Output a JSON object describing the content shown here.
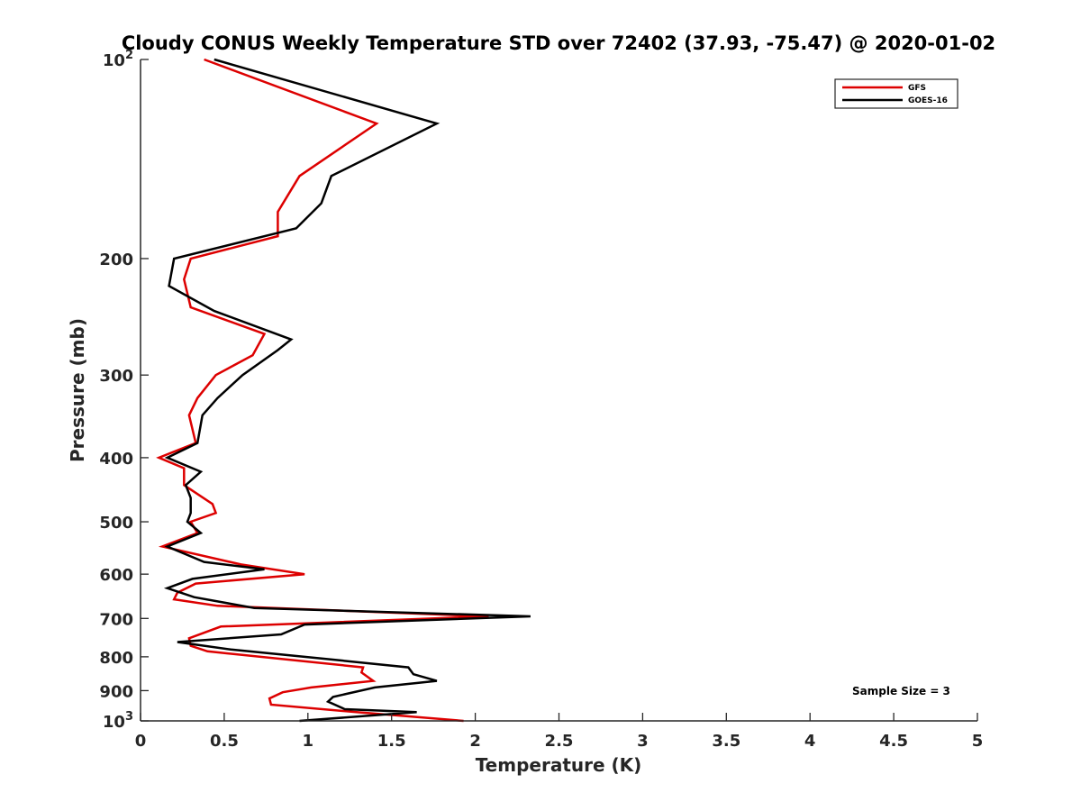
{
  "chart_data": {
    "type": "line",
    "title": "Cloudy CONUS Weekly Temperature STD over 72402 (37.93, -75.47) @ 2020-01-02",
    "xlabel": "Temperature (K)",
    "ylabel": "Pressure (mb)",
    "xlim": [
      0,
      5
    ],
    "ylim": [
      100,
      1000
    ],
    "y_scale": "log",
    "y_reversed": true,
    "xticks": [
      0,
      0.5,
      1,
      1.5,
      2,
      2.5,
      3,
      3.5,
      4,
      4.5,
      5
    ],
    "xtick_labels": [
      "0",
      "0.5",
      "1",
      "1.5",
      "2",
      "2.5",
      "3",
      "3.5",
      "4",
      "4.5",
      "5"
    ],
    "yticks": [
      100,
      200,
      300,
      400,
      500,
      600,
      700,
      800,
      900,
      1000
    ],
    "ytick_labels": [
      {
        "base": "10",
        "exp": "2"
      },
      {
        "base": "200",
        "exp": ""
      },
      {
        "base": "300",
        "exp": ""
      },
      {
        "base": "400",
        "exp": ""
      },
      {
        "base": "500",
        "exp": ""
      },
      {
        "base": "600",
        "exp": ""
      },
      {
        "base": "700",
        "exp": ""
      },
      {
        "base": "800",
        "exp": ""
      },
      {
        "base": "900",
        "exp": ""
      },
      {
        "base": "10",
        "exp": "3"
      }
    ],
    "grid": false,
    "legend_position": "top-right",
    "series": [
      {
        "name": "GFS",
        "color": "#dd0000",
        "points": [
          [
            0.38,
            100
          ],
          [
            1.41,
            125
          ],
          [
            0.95,
            150
          ],
          [
            0.82,
            170
          ],
          [
            0.82,
            185
          ],
          [
            0.3,
            200
          ],
          [
            0.26,
            215
          ],
          [
            0.3,
            237
          ],
          [
            0.74,
            260
          ],
          [
            0.67,
            280
          ],
          [
            0.45,
            300
          ],
          [
            0.34,
            325
          ],
          [
            0.29,
            345
          ],
          [
            0.33,
            380
          ],
          [
            0.11,
            400
          ],
          [
            0.26,
            415
          ],
          [
            0.26,
            440
          ],
          [
            0.43,
            470
          ],
          [
            0.45,
            485
          ],
          [
            0.3,
            500
          ],
          [
            0.34,
            520
          ],
          [
            0.13,
            545
          ],
          [
            0.6,
            580
          ],
          [
            0.98,
            600
          ],
          [
            0.33,
            620
          ],
          [
            0.22,
            640
          ],
          [
            0.2,
            655
          ],
          [
            0.46,
            670
          ],
          [
            2.08,
            695
          ],
          [
            0.48,
            720
          ],
          [
            0.29,
            750
          ],
          [
            0.3,
            770
          ],
          [
            0.4,
            785
          ],
          [
            1.33,
            830
          ],
          [
            1.32,
            845
          ],
          [
            1.39,
            870
          ],
          [
            1.02,
            890
          ],
          [
            0.85,
            905
          ],
          [
            0.77,
            925
          ],
          [
            0.78,
            945
          ],
          [
            1.29,
            970
          ],
          [
            1.93,
            1000
          ]
        ]
      },
      {
        "name": "GOES-16",
        "color": "#000000",
        "points": [
          [
            0.44,
            100
          ],
          [
            1.77,
            125
          ],
          [
            1.14,
            150
          ],
          [
            1.08,
            165
          ],
          [
            0.93,
            180
          ],
          [
            0.2,
            200
          ],
          [
            0.17,
            220
          ],
          [
            0.44,
            240
          ],
          [
            0.9,
            265
          ],
          [
            0.82,
            275
          ],
          [
            0.61,
            300
          ],
          [
            0.46,
            325
          ],
          [
            0.37,
            345
          ],
          [
            0.34,
            380
          ],
          [
            0.16,
            400
          ],
          [
            0.36,
            420
          ],
          [
            0.27,
            440
          ],
          [
            0.3,
            460
          ],
          [
            0.3,
            485
          ],
          [
            0.28,
            500
          ],
          [
            0.36,
            520
          ],
          [
            0.16,
            545
          ],
          [
            0.38,
            575
          ],
          [
            0.74,
            590
          ],
          [
            0.31,
            610
          ],
          [
            0.16,
            630
          ],
          [
            0.32,
            650
          ],
          [
            0.68,
            675
          ],
          [
            2.33,
            695
          ],
          [
            0.98,
            715
          ],
          [
            0.84,
            740
          ],
          [
            0.22,
            760
          ],
          [
            0.54,
            780
          ],
          [
            1.19,
            810
          ],
          [
            1.6,
            830
          ],
          [
            1.63,
            850
          ],
          [
            1.77,
            870
          ],
          [
            1.4,
            890
          ],
          [
            1.15,
            920
          ],
          [
            1.12,
            935
          ],
          [
            1.22,
            960
          ],
          [
            1.65,
            970
          ],
          [
            0.95,
            1000
          ]
        ]
      }
    ],
    "annotations": [
      "Sample Size = 3"
    ]
  }
}
